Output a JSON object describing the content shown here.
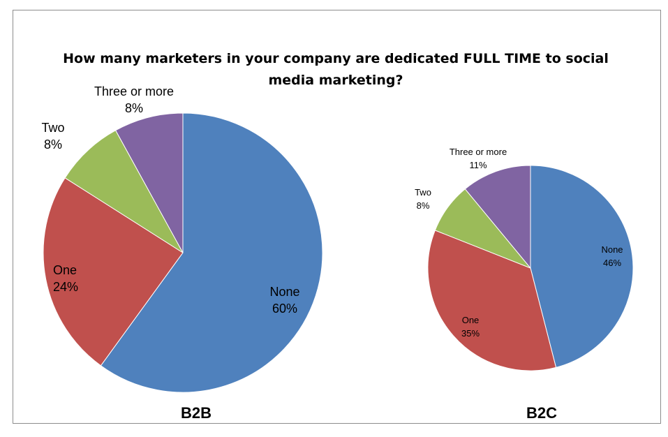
{
  "chart_data": [
    {
      "type": "pie",
      "title": "How many marketers in your company are dedicated FULL TIME to social media marketing?",
      "subtitle": "B2B",
      "categories": [
        "None",
        "One",
        "Two",
        "Three or more"
      ],
      "values": [
        60,
        24,
        8,
        8
      ],
      "value_labels": [
        "60%",
        "24%",
        "8%",
        "8%"
      ],
      "colors": [
        "#4F81BD",
        "#C0504D",
        "#9BBB59",
        "#8064A2"
      ],
      "start": "12 o'clock",
      "direction": "clockwise",
      "legend": "none, labels on/next to slices"
    },
    {
      "type": "pie",
      "subtitle": "B2C",
      "categories": [
        "None",
        "One",
        "Two",
        "Three or more"
      ],
      "values": [
        46,
        35,
        8,
        11
      ],
      "value_labels": [
        "46%",
        "35%",
        "8%",
        "11%"
      ],
      "colors": [
        "#4F81BD",
        "#C0504D",
        "#9BBB59",
        "#8064A2"
      ],
      "start": "12 o'clock",
      "direction": "clockwise",
      "legend": "none, labels on/next to slices"
    }
  ],
  "title_lines": [
    "How many marketers in your company are dedicated FULL TIME to social",
    "media marketing?"
  ]
}
